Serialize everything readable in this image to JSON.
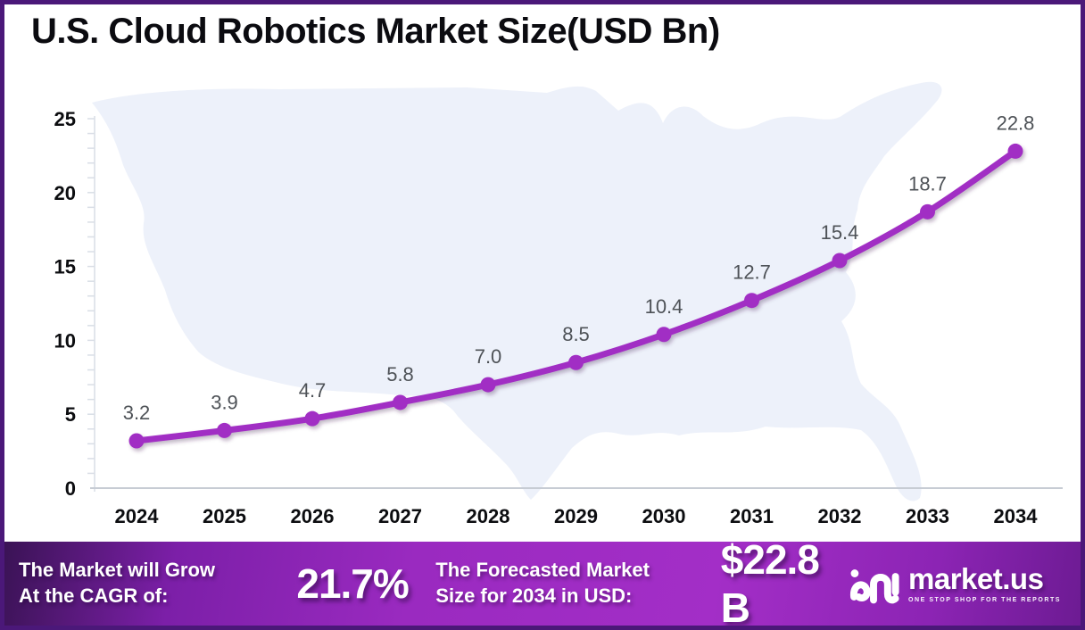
{
  "title": "U.S. Cloud Robotics Market Size(USD Bn)",
  "chart_data": {
    "type": "line",
    "title": "U.S. Cloud Robotics Market Size(USD Bn)",
    "categories": [
      "2024",
      "2025",
      "2026",
      "2027",
      "2028",
      "2029",
      "2030",
      "2031",
      "2032",
      "2033",
      "2034"
    ],
    "series": [
      {
        "name": "U.S. Cloud Robotics Market Size (USD Bn)",
        "values": [
          3.2,
          3.9,
          4.7,
          5.8,
          7.0,
          8.5,
          10.4,
          12.7,
          15.4,
          18.7,
          22.8
        ],
        "labels": [
          "3.2",
          "3.9",
          "4.7",
          "5.8",
          "7.0",
          "8.5",
          "10.4",
          "12.7",
          "15.4",
          "18.7",
          "22.8"
        ]
      }
    ],
    "ylim": [
      0,
      25
    ],
    "y_ticks": [
      "0",
      "5",
      "10",
      "15",
      "20",
      "25"
    ],
    "minor_tick_step": 1,
    "grid": false,
    "legend": "none",
    "marker": "circle",
    "background": "us-map-silhouette"
  },
  "banner": {
    "cagr_label": "The Market will Grow\nAt the CAGR of:",
    "cagr_value": "21.7%",
    "forecast_label": "The Forecasted Market\nSize for 2034 in USD:",
    "forecast_value": "$22.8 B",
    "logo_text": "market.us",
    "logo_tagline": "ONE STOP SHOP FOR THE REPORTS"
  },
  "colors": {
    "line": "#a12fc4",
    "map_fill": "#edf1fa",
    "frame_border": "#4b1879",
    "banner_from": "#3a1355",
    "banner_mid": "#9a2ac0",
    "banner_to": "#6d1b93",
    "data_label": "#4e5257",
    "axis_text": "#0c0d10"
  }
}
